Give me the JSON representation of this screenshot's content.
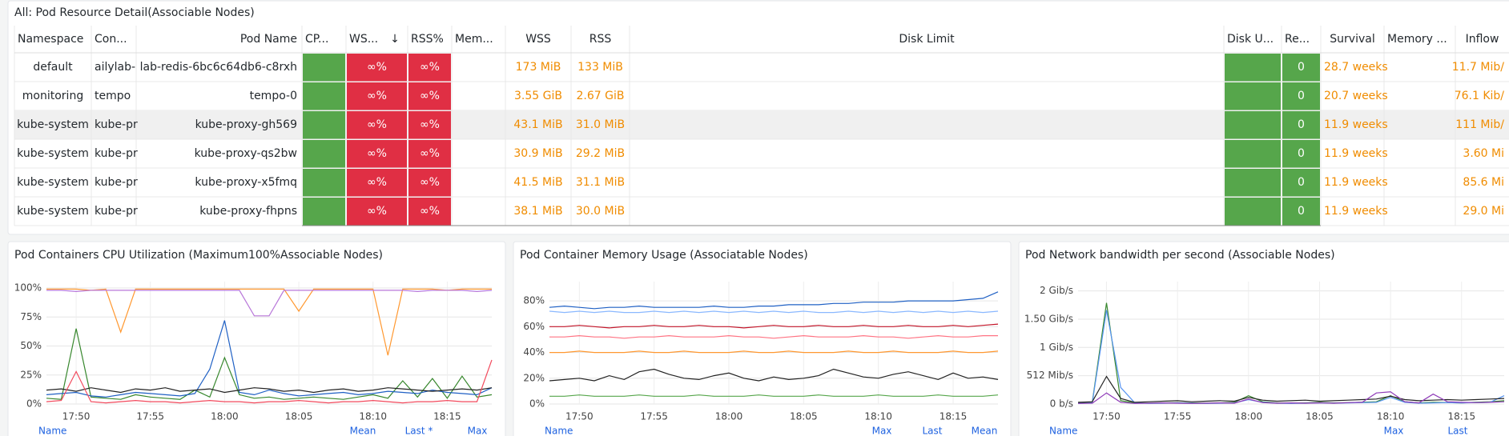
{
  "table": {
    "title": "All:  Pod Resource Detail(Associable Nodes)",
    "columns": [
      "Namespace",
      "Con...",
      "Pod Name",
      "CP...",
      "WS...",
      "RSS%",
      "Mem...",
      "WSS",
      "RSS",
      "Disk Limit",
      "Disk U...",
      "Re...",
      "Survival",
      "Memory ...",
      "Inflow"
    ],
    "rows": [
      {
        "ns": "default",
        "container": "ailylab-",
        "pod": "lab-redis-6bc6c64db6-c8rxh",
        "wss_pct": "∞%",
        "rss_pct": "∞%",
        "wss": "173 MiB",
        "rss": "133 MiB",
        "restarts": 0,
        "survival": "28.7 weeks",
        "inflow": "11.7 Mib/"
      },
      {
        "ns": "monitoring",
        "container": "tempo",
        "pod": "tempo-0",
        "wss_pct": "∞%",
        "rss_pct": "∞%",
        "wss": "3.55 GiB",
        "rss": "2.67 GiB",
        "restarts": 0,
        "survival": "20.7 weeks",
        "inflow": "76.1 Kib/"
      },
      {
        "ns": "kube-system",
        "container": "kube-pr",
        "pod": "kube-proxy-gh569",
        "wss_pct": "∞%",
        "rss_pct": "∞%",
        "wss": "43.1 MiB",
        "rss": "31.0 MiB",
        "restarts": 0,
        "survival": "11.9 weeks",
        "inflow": "111 Mib/"
      },
      {
        "ns": "kube-system",
        "container": "kube-pr",
        "pod": "kube-proxy-qs2bw",
        "wss_pct": "∞%",
        "rss_pct": "∞%",
        "wss": "30.9 MiB",
        "rss": "29.2 MiB",
        "restarts": 0,
        "survival": "11.9 weeks",
        "inflow": "3.60 Mi"
      },
      {
        "ns": "kube-system",
        "container": "kube-pr",
        "pod": "kube-proxy-x5fmq",
        "wss_pct": "∞%",
        "rss_pct": "∞%",
        "wss": "41.5 MiB",
        "rss": "31.1 MiB",
        "restarts": 0,
        "survival": "11.9 weeks",
        "inflow": "85.6 Mi"
      },
      {
        "ns": "kube-system",
        "container": "kube-pr",
        "pod": "kube-proxy-fhpns",
        "wss_pct": "∞%",
        "rss_pct": "∞%",
        "wss": "38.1 MiB",
        "rss": "30.0 MiB",
        "restarts": 0,
        "survival": "11.9 weeks",
        "inflow": "29.0 Mi"
      }
    ]
  },
  "chart_data": [
    {
      "type": "line",
      "title": "Pod Containers CPU Utilization (Maximum100%Associable Nodes)",
      "grid": true,
      "x": [
        "17:48",
        "17:49",
        "17:50",
        "17:51",
        "17:52",
        "17:53",
        "17:54",
        "17:55",
        "17:56",
        "17:57",
        "17:58",
        "17:59",
        "18:00",
        "18:01",
        "18:02",
        "18:03",
        "18:04",
        "18:05",
        "18:06",
        "18:07",
        "18:08",
        "18:09",
        "18:10",
        "18:11",
        "18:12",
        "18:13",
        "18:14",
        "18:15",
        "18:16",
        "18:17",
        "18:18"
      ],
      "xlim": [
        "17:48",
        "18:18"
      ],
      "xticks": [
        "17:50",
        "17:55",
        "18:00",
        "18:05",
        "18:10",
        "18:15"
      ],
      "ylim": [
        0,
        100
      ],
      "yticks": [
        {
          "value": 0,
          "label": "0%"
        },
        {
          "value": 25,
          "label": "25%"
        },
        {
          "value": 50,
          "label": "50%"
        },
        {
          "value": 75,
          "label": "75%"
        },
        {
          "value": 100,
          "label": "100%"
        }
      ],
      "legend_columns": [
        "Name",
        "Mean",
        "Last *",
        "Max"
      ],
      "series": [
        {
          "color": "#ff9830",
          "values": [
            99,
            99,
            99,
            98,
            99,
            62,
            99,
            99,
            99,
            99,
            99,
            99,
            99,
            99,
            99,
            99,
            99,
            80,
            99,
            99,
            99,
            99,
            99,
            42,
            99,
            99,
            99,
            98,
            99,
            99,
            99
          ]
        },
        {
          "color": "#b877d9",
          "values": [
            98,
            98,
            97,
            98,
            98,
            98,
            98,
            98,
            98,
            98,
            98,
            98,
            98,
            98,
            76,
            76,
            98,
            98,
            98,
            98,
            98,
            98,
            98,
            98,
            98,
            97,
            98,
            98,
            98,
            97,
            98
          ]
        },
        {
          "color": "#37872d",
          "values": [
            5,
            4,
            65,
            6,
            5,
            4,
            8,
            6,
            5,
            4,
            12,
            6,
            40,
            8,
            5,
            6,
            4,
            5,
            6,
            5,
            4,
            6,
            8,
            5,
            20,
            6,
            22,
            5,
            24,
            6,
            8
          ]
        },
        {
          "color": "#1f60c4",
          "values": [
            8,
            9,
            10,
            7,
            6,
            8,
            10,
            9,
            8,
            7,
            9,
            30,
            72,
            10,
            8,
            12,
            9,
            7,
            8,
            9,
            10,
            8,
            9,
            11,
            10,
            9,
            12,
            10,
            9,
            8,
            14
          ]
        },
        {
          "color": "#222222",
          "values": [
            12,
            13,
            11,
            14,
            12,
            10,
            13,
            12,
            14,
            11,
            12,
            13,
            10,
            12,
            14,
            13,
            11,
            12,
            10,
            12,
            13,
            11,
            12,
            14,
            13,
            12,
            11,
            12,
            13,
            12,
            14
          ]
        },
        {
          "color": "#f2495c",
          "values": [
            2,
            3,
            28,
            2,
            1,
            2,
            3,
            2,
            2,
            1,
            2,
            3,
            2,
            2,
            1,
            2,
            2,
            3,
            2,
            1,
            2,
            2,
            3,
            2,
            1,
            2,
            2,
            3,
            2,
            2,
            38
          ]
        }
      ]
    },
    {
      "type": "line",
      "title": "Pod Container Memory Usage (Associatable Nodes)",
      "grid": true,
      "x": [
        "17:48",
        "17:49",
        "17:50",
        "17:51",
        "17:52",
        "17:53",
        "17:54",
        "17:55",
        "17:56",
        "17:57",
        "17:58",
        "17:59",
        "18:00",
        "18:01",
        "18:02",
        "18:03",
        "18:04",
        "18:05",
        "18:06",
        "18:07",
        "18:08",
        "18:09",
        "18:10",
        "18:11",
        "18:12",
        "18:13",
        "18:14",
        "18:15",
        "18:16",
        "18:17",
        "18:18"
      ],
      "xlim": [
        "17:48",
        "18:18"
      ],
      "xticks": [
        "17:50",
        "17:55",
        "18:00",
        "18:05",
        "18:10",
        "18:15"
      ],
      "ylim": [
        0,
        90
      ],
      "yticks": [
        {
          "value": 0,
          "label": "0%"
        },
        {
          "value": 20,
          "label": "20%"
        },
        {
          "value": 40,
          "label": "40%"
        },
        {
          "value": 60,
          "label": "60%"
        },
        {
          "value": 80,
          "label": "80%"
        }
      ],
      "legend_columns": [
        "Name",
        "Max",
        "Last",
        "Mean"
      ],
      "series": [
        {
          "color": "#1f60c4",
          "values": [
            75,
            76,
            75,
            74,
            75,
            75,
            76,
            75,
            75,
            75,
            75,
            76,
            75,
            75,
            76,
            76,
            77,
            77,
            77,
            78,
            78,
            79,
            79,
            79,
            80,
            80,
            80,
            80,
            81,
            82,
            87
          ]
        },
        {
          "color": "#8ab8ff",
          "values": [
            72,
            71,
            72,
            71,
            72,
            71,
            71,
            72,
            71,
            72,
            71,
            72,
            71,
            72,
            71,
            72,
            71,
            72,
            71,
            71,
            72,
            71,
            72,
            71,
            72,
            71,
            72,
            71,
            72,
            71,
            72
          ]
        },
        {
          "color": "#c4162a",
          "values": [
            60,
            60,
            61,
            60,
            59,
            60,
            60,
            61,
            60,
            60,
            61,
            60,
            60,
            59,
            60,
            61,
            60,
            60,
            61,
            60,
            60,
            61,
            60,
            60,
            61,
            60,
            60,
            61,
            60,
            61,
            62
          ]
        },
        {
          "color": "#ff7383",
          "values": [
            52,
            52,
            53,
            52,
            52,
            51,
            52,
            52,
            53,
            52,
            52,
            52,
            53,
            52,
            52,
            51,
            52,
            53,
            52,
            52,
            52,
            53,
            52,
            52,
            51,
            52,
            53,
            52,
            52,
            53,
            53
          ]
        },
        {
          "color": "#ff9830",
          "values": [
            40,
            40,
            41,
            40,
            40,
            40,
            41,
            40,
            40,
            41,
            40,
            40,
            40,
            41,
            40,
            40,
            41,
            40,
            40,
            40,
            41,
            40,
            40,
            41,
            40,
            40,
            40,
            41,
            40,
            40,
            41
          ]
        },
        {
          "color": "#222222",
          "values": [
            18,
            19,
            20,
            18,
            22,
            19,
            25,
            27,
            23,
            20,
            19,
            22,
            24,
            20,
            18,
            21,
            19,
            20,
            22,
            27,
            24,
            21,
            20,
            23,
            25,
            22,
            19,
            24,
            20,
            21,
            19
          ]
        },
        {
          "color": "#56a64b",
          "values": [
            6,
            6,
            7,
            6,
            6,
            6,
            7,
            6,
            6,
            6,
            7,
            6,
            6,
            6,
            7,
            6,
            6,
            6,
            7,
            6,
            6,
            6,
            7,
            6,
            6,
            6,
            7,
            6,
            6,
            6,
            7
          ]
        }
      ]
    },
    {
      "type": "line",
      "title": "Pod Network bandwidth per second (Associable Nodes)",
      "grid": true,
      "x": [
        "17:48",
        "17:49",
        "17:50",
        "17:51",
        "17:52",
        "17:53",
        "17:54",
        "17:55",
        "17:56",
        "17:57",
        "17:58",
        "17:59",
        "18:00",
        "18:01",
        "18:02",
        "18:03",
        "18:04",
        "18:05",
        "18:06",
        "18:07",
        "18:08",
        "18:09",
        "18:10",
        "18:11",
        "18:12",
        "18:13",
        "18:14",
        "18:15",
        "18:16",
        "18:17",
        "18:18"
      ],
      "xlim": [
        "17:48",
        "18:18"
      ],
      "xticks": [
        "17:50",
        "17:55",
        "18:00",
        "18:05",
        "18:10",
        "18:15"
      ],
      "ylim": [
        0,
        2100
      ],
      "yticks": [
        {
          "value": 0,
          "label": "0 b/s"
        },
        {
          "value": 512,
          "label": "512 Mib/s"
        },
        {
          "value": 1024,
          "label": "1 Gib/s"
        },
        {
          "value": 1536,
          "label": "1.50 Gib/s"
        },
        {
          "value": 2048,
          "label": "2 Gib/s"
        }
      ],
      "legend_columns": [
        "Name",
        "Max",
        "Last"
      ],
      "series": [
        {
          "color": "#37872d",
          "values": [
            20,
            30,
            1830,
            60,
            20,
            15,
            20,
            25,
            20,
            15,
            20,
            30,
            150,
            40,
            20,
            15,
            20,
            30,
            20,
            25,
            30,
            40,
            150,
            40,
            20,
            30,
            25,
            20,
            30,
            40,
            60
          ]
        },
        {
          "color": "#5794f2",
          "values": [
            10,
            20,
            1700,
            300,
            20,
            10,
            15,
            20,
            15,
            10,
            15,
            20,
            80,
            30,
            15,
            10,
            15,
            20,
            15,
            20,
            25,
            30,
            120,
            30,
            15,
            20,
            25,
            20,
            25,
            30,
            150
          ]
        },
        {
          "color": "#222222",
          "values": [
            30,
            40,
            500,
            100,
            30,
            40,
            50,
            60,
            40,
            50,
            60,
            50,
            120,
            70,
            50,
            60,
            70,
            50,
            60,
            70,
            80,
            90,
            140,
            80,
            60,
            70,
            80,
            70,
            80,
            90,
            100
          ]
        },
        {
          "color": "#8f3bb8",
          "values": [
            10,
            15,
            200,
            30,
            10,
            15,
            20,
            15,
            10,
            15,
            20,
            15,
            90,
            25,
            15,
            20,
            15,
            20,
            15,
            25,
            30,
            200,
            220,
            40,
            20,
            180,
            40,
            30,
            25,
            30,
            40
          ]
        }
      ]
    }
  ]
}
